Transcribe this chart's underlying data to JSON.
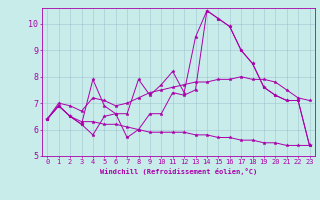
{
  "xlabel": "Windchill (Refroidissement éolien,°C)",
  "background_color": "#c8ecea",
  "line_color": "#aa00aa",
  "xlim": [
    -0.5,
    23.5
  ],
  "ylim": [
    5.0,
    10.6
  ],
  "xticks": [
    0,
    1,
    2,
    3,
    4,
    5,
    6,
    7,
    8,
    9,
    10,
    11,
    12,
    13,
    14,
    15,
    16,
    17,
    18,
    19,
    20,
    21,
    22,
    23
  ],
  "yticks": [
    5,
    6,
    7,
    8,
    9,
    10
  ],
  "grid_color": "#99bbcc",
  "series": [
    [
      6.4,
      6.9,
      6.5,
      6.2,
      5.8,
      6.5,
      6.6,
      5.7,
      6.0,
      6.6,
      6.6,
      7.4,
      7.3,
      7.5,
      10.5,
      10.2,
      9.9,
      9.0,
      8.5,
      7.6,
      7.3,
      7.1,
      7.1,
      5.4
    ],
    [
      6.4,
      6.9,
      6.5,
      6.2,
      7.9,
      6.9,
      6.6,
      6.6,
      7.9,
      7.3,
      7.7,
      8.2,
      7.4,
      9.5,
      10.5,
      10.2,
      9.9,
      9.0,
      8.5,
      7.6,
      7.3,
      7.1,
      7.1,
      5.4
    ],
    [
      6.4,
      7.0,
      6.9,
      6.7,
      7.2,
      7.1,
      6.9,
      7.0,
      7.2,
      7.4,
      7.5,
      7.6,
      7.7,
      7.8,
      7.8,
      7.9,
      7.9,
      8.0,
      7.9,
      7.9,
      7.8,
      7.5,
      7.2,
      7.1
    ],
    [
      6.4,
      6.9,
      6.5,
      6.3,
      6.3,
      6.2,
      6.2,
      6.1,
      6.0,
      5.9,
      5.9,
      5.9,
      5.9,
      5.8,
      5.8,
      5.7,
      5.7,
      5.6,
      5.6,
      5.5,
      5.5,
      5.4,
      5.4,
      5.4
    ]
  ],
  "tick_fontsize": 5,
  "xlabel_fontsize": 5,
  "marker_size": 2.5,
  "linewidth": 0.7
}
